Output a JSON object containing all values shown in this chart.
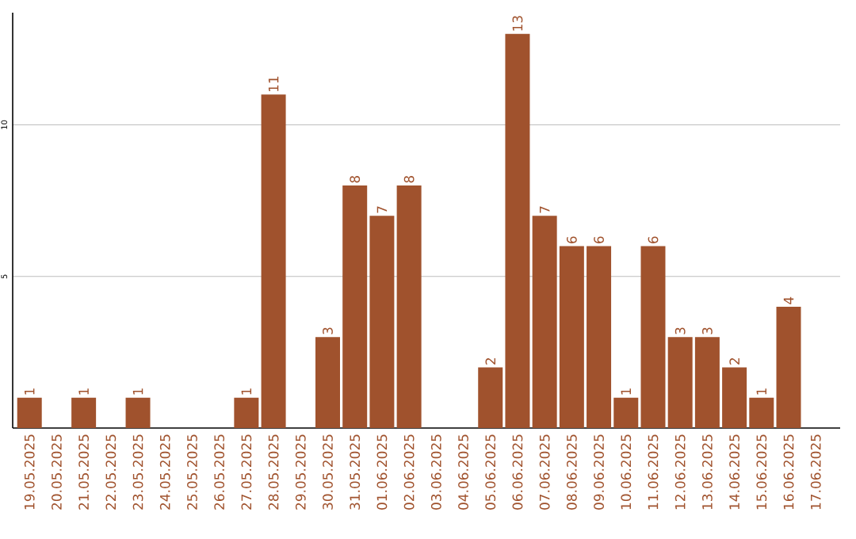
{
  "chart_data": {
    "type": "bar",
    "categories": [
      "19.05.2025",
      "20.05.2025",
      "21.05.2025",
      "22.05.2025",
      "23.05.2025",
      "24.05.2025",
      "25.05.2025",
      "26.05.2025",
      "27.05.2025",
      "28.05.2025",
      "29.05.2025",
      "30.05.2025",
      "31.05.2025",
      "01.06.2025",
      "02.06.2025",
      "03.06.2025",
      "04.06.2025",
      "05.06.2025",
      "06.06.2025",
      "07.06.2025",
      "08.06.2025",
      "09.06.2025",
      "10.06.2025",
      "11.06.2025",
      "12.06.2025",
      "13.06.2025",
      "14.06.2025",
      "15.06.2025",
      "16.06.2025",
      "17.06.2025"
    ],
    "values": [
      1,
      null,
      1,
      null,
      1,
      null,
      null,
      null,
      1,
      11,
      null,
      3,
      8,
      7,
      8,
      null,
      null,
      2,
      13,
      7,
      6,
      6,
      1,
      6,
      3,
      3,
      2,
      1,
      4,
      null
    ],
    "color": "#a0522d",
    "ylim": [
      0,
      13.7
    ],
    "yticks": [
      5,
      10
    ],
    "grid": "y",
    "data_labels": true
  }
}
